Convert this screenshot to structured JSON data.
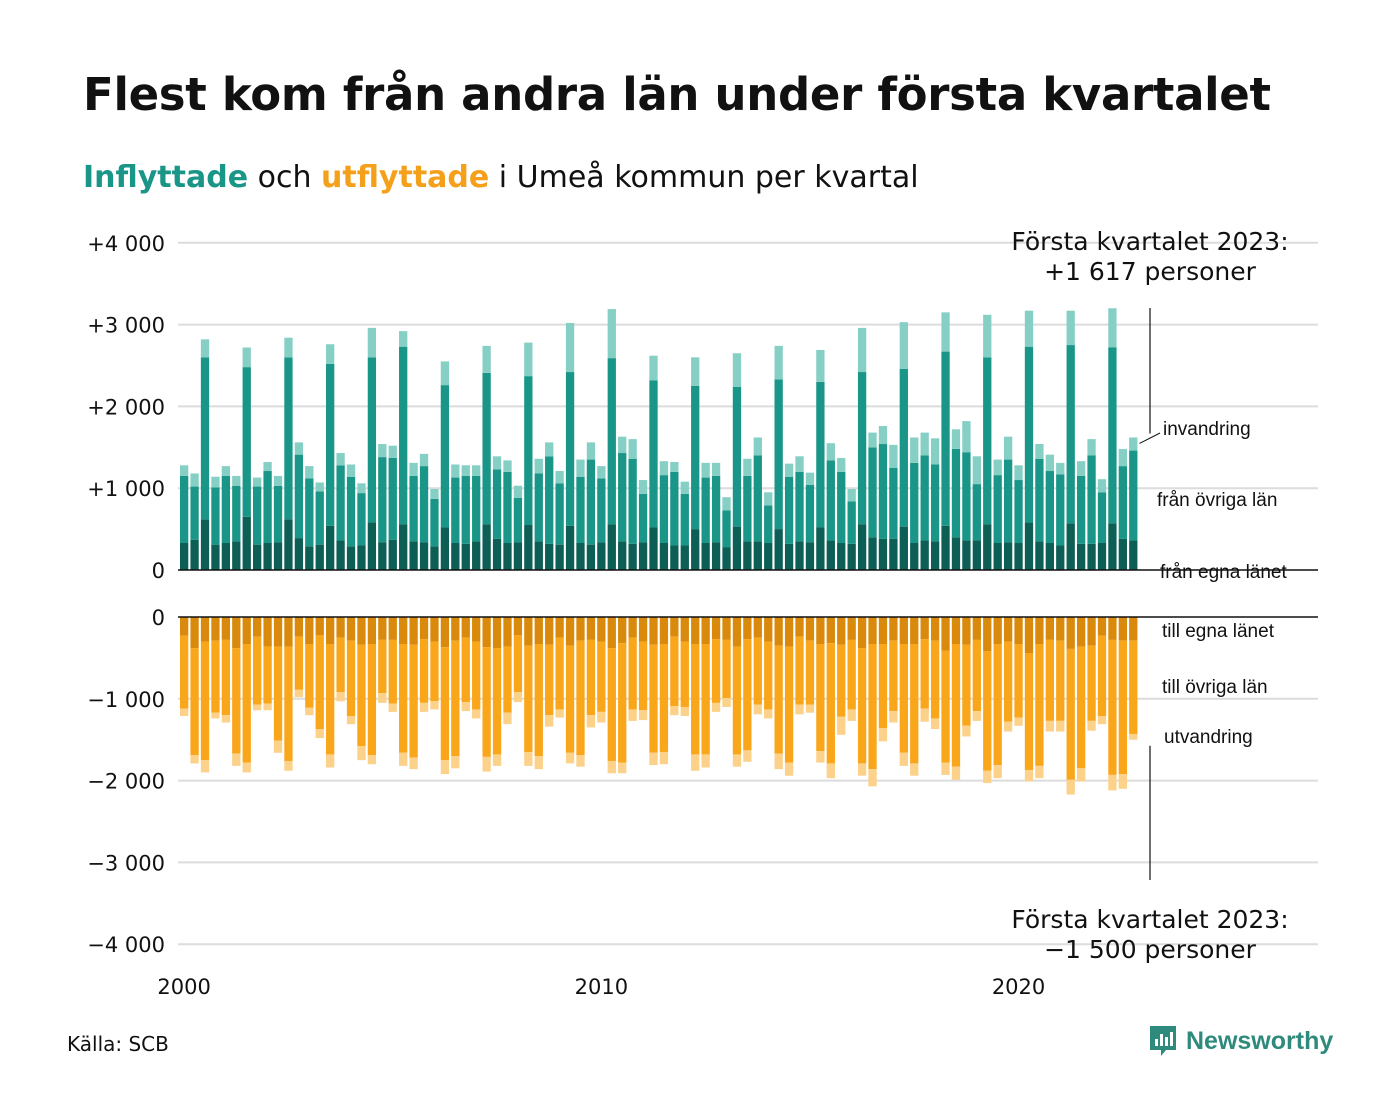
{
  "title": "Flest kom från andra län under första kvartalet",
  "subtitle": {
    "part1": "Inflyttade",
    "part2": " och ",
    "part3": "utflyttade",
    "part4": " i Umeå kommun per kvartal"
  },
  "source": "Källa: SCB",
  "brand": {
    "name": "Newsworthy",
    "icon": "newsworthy-logo-icon",
    "color": "#2e8a7c"
  },
  "colors": {
    "in_local": "#0d5f56",
    "in_other": "#1a9688",
    "in_immig": "#86cfc5",
    "out_local": "#d98a0c",
    "out_other": "#f9a61b",
    "out_emig": "#fcd18a",
    "grid": "#dcdcdc"
  },
  "chart_data": {
    "type": "bar",
    "subtype": "stacked diverging",
    "x_ticks": [
      "2000",
      "2010",
      "2020"
    ],
    "y_ticks_top": [
      "+4 000",
      "+3 000",
      "+2 000",
      "+1 000",
      "0"
    ],
    "y_ticks_bottom": [
      "0",
      "−1 000",
      "−2 000",
      "−3 000",
      "−4 000"
    ],
    "ylim_top": [
      0,
      4000
    ],
    "ylim_bottom": [
      -4000,
      0
    ],
    "grid": true,
    "start": "2000 Q1",
    "frequency": "quarter",
    "series_in": [
      {
        "name": "från egna länet",
        "values": [
          330,
          370,
          620,
          310,
          330,
          350,
          650,
          310,
          330,
          340,
          620,
          390,
          290,
          310,
          540,
          360,
          290,
          300,
          580,
          340,
          370,
          560,
          350,
          340,
          290,
          520,
          330,
          320,
          350,
          560,
          380,
          330,
          340,
          550,
          350,
          320,
          310,
          540,
          330,
          310,
          340,
          560,
          350,
          320,
          340,
          520,
          330,
          300,
          300,
          500,
          330,
          340,
          280,
          530,
          350,
          350,
          330,
          500,
          320,
          350,
          340,
          520,
          360,
          330,
          320,
          560,
          400,
          380,
          380,
          530,
          330,
          360,
          350,
          540,
          400,
          360,
          360,
          560,
          330,
          340,
          330,
          580,
          350,
          330,
          300,
          570,
          320,
          320,
          330,
          570,
          380,
          360
        ]
      },
      {
        "name": "från övriga län",
        "values": [
          820,
          650,
          1980,
          700,
          820,
          680,
          1830,
          710,
          880,
          690,
          1980,
          1020,
          830,
          650,
          1980,
          920,
          850,
          640,
          2020,
          1040,
          1000,
          2170,
          800,
          930,
          580,
          1740,
          800,
          830,
          800,
          1850,
          850,
          870,
          540,
          1820,
          830,
          1070,
          750,
          1880,
          810,
          1040,
          780,
          2030,
          1080,
          1040,
          590,
          1800,
          830,
          900,
          630,
          1750,
          800,
          810,
          450,
          1710,
          800,
          1050,
          460,
          1830,
          820,
          850,
          700,
          1780,
          980,
          870,
          520,
          1860,
          1100,
          1160,
          870,
          1930,
          980,
          1040,
          940,
          2130,
          1080,
          1080,
          690,
          2040,
          830,
          1010,
          770,
          2150,
          1010,
          880,
          870,
          2180,
          830,
          1080,
          620,
          2150,
          890,
          1100
        ]
      },
      {
        "name": "invandring",
        "values": [
          130,
          160,
          220,
          130,
          120,
          120,
          240,
          110,
          110,
          120,
          240,
          150,
          150,
          110,
          240,
          150,
          150,
          120,
          360,
          160,
          150,
          190,
          160,
          150,
          120,
          290,
          160,
          130,
          130,
          330,
          160,
          140,
          150,
          410,
          180,
          170,
          150,
          600,
          210,
          210,
          150,
          600,
          200,
          240,
          170,
          300,
          170,
          120,
          150,
          350,
          180,
          160,
          160,
          410,
          210,
          220,
          160,
          410,
          160,
          190,
          150,
          390,
          210,
          170,
          150,
          540,
          180,
          220,
          280,
          570,
          310,
          280,
          320,
          480,
          240,
          380,
          340,
          520,
          190,
          280,
          180,
          440,
          180,
          200,
          140,
          420,
          180,
          200,
          160,
          480,
          210,
          160
        ]
      }
    ],
    "series_out": [
      {
        "name": "till egna länet",
        "values": [
          230,
          380,
          300,
          290,
          280,
          380,
          330,
          240,
          360,
          360,
          360,
          240,
          330,
          220,
          330,
          250,
          290,
          340,
          330,
          280,
          280,
          330,
          340,
          270,
          300,
          370,
          290,
          250,
          300,
          370,
          380,
          360,
          220,
          350,
          330,
          340,
          250,
          350,
          290,
          280,
          300,
          380,
          320,
          250,
          300,
          340,
          330,
          240,
          300,
          330,
          330,
          270,
          280,
          360,
          270,
          250,
          300,
          350,
          360,
          240,
          290,
          330,
          320,
          340,
          280,
          380,
          330,
          330,
          290,
          330,
          330,
          270,
          290,
          410,
          330,
          340,
          280,
          420,
          330,
          300,
          330,
          440,
          330,
          280,
          290,
          390,
          360,
          350,
          230,
          280,
          290,
          290
        ]
      },
      {
        "name": "till övriga län",
        "values": [
          890,
          1310,
          1450,
          880,
          920,
          1290,
          1450,
          830,
          700,
          1150,
          1400,
          650,
          780,
          1150,
          1350,
          670,
          920,
          1240,
          1360,
          650,
          780,
          1330,
          1380,
          780,
          730,
          1380,
          1410,
          790,
          830,
          1340,
          1300,
          810,
          700,
          1300,
          1370,
          860,
          880,
          1310,
          1400,
          920,
          860,
          1380,
          1460,
          880,
          840,
          1320,
          1320,
          850,
          800,
          1350,
          1350,
          780,
          710,
          1320,
          1360,
          820,
          830,
          1320,
          1420,
          830,
          780,
          1310,
          1470,
          880,
          850,
          1410,
          1530,
          1030,
          860,
          1330,
          1460,
          850,
          950,
          1370,
          1500,
          990,
          870,
          1460,
          1480,
          980,
          900,
          1430,
          1490,
          990,
          980,
          1600,
          1490,
          920,
          980,
          1650,
          1630,
          1140
        ]
      },
      {
        "name": "utvandring",
        "values": [
          90,
          100,
          150,
          70,
          90,
          150,
          120,
          70,
          80,
          150,
          120,
          90,
          90,
          110,
          160,
          110,
          100,
          170,
          110,
          120,
          100,
          160,
          140,
          110,
          100,
          170,
          150,
          110,
          110,
          180,
          140,
          140,
          120,
          170,
          160,
          140,
          100,
          130,
          140,
          150,
          130,
          150,
          130,
          140,
          120,
          150,
          150,
          110,
          110,
          200,
          160,
          110,
          110,
          150,
          140,
          120,
          110,
          190,
          160,
          120,
          100,
          140,
          180,
          220,
          140,
          150,
          210,
          160,
          140,
          160,
          150,
          160,
          130,
          150,
          160,
          130,
          120,
          150,
          160,
          120,
          100,
          140,
          150,
          130,
          130,
          180,
          160,
          120,
          100,
          190,
          180,
          70
        ]
      }
    ],
    "annotation_top": {
      "line1": "Första kvartalet 2023:",
      "line2": "+1 617 personer"
    },
    "annotation_bottom": {
      "line1": "Första kvartalet 2023:",
      "line2": "−1 500 personer"
    }
  }
}
